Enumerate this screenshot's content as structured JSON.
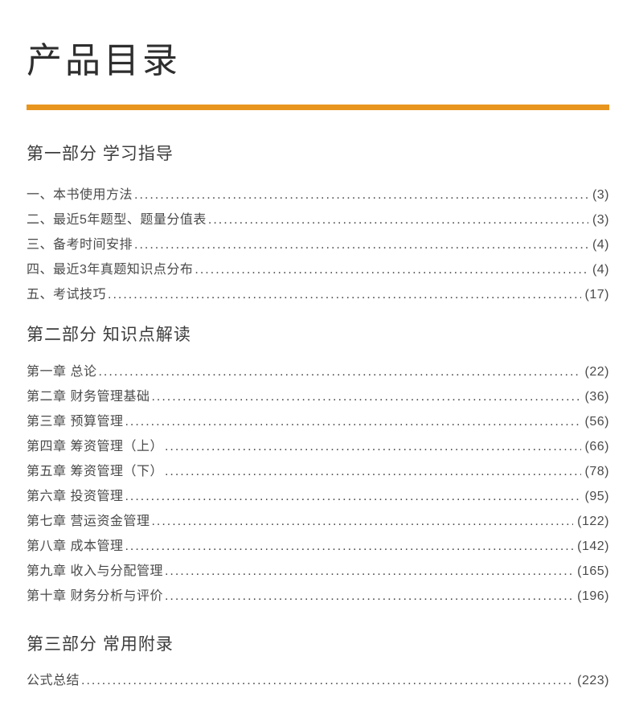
{
  "page": {
    "title": "产品目录",
    "accent_color": "#e8951e"
  },
  "sections": [
    {
      "heading": "第一部分 学习指导",
      "items": [
        {
          "title": "一、本书使用方法",
          "page": "(3)"
        },
        {
          "title": "二、最近5年题型、题量分值表",
          "page": "(3)"
        },
        {
          "title": "三、备考时间安排",
          "page": "(4)"
        },
        {
          "title": "四、最近3年真题知识点分布",
          "page": "(4)"
        },
        {
          "title": "五、考试技巧",
          "page": "(17)"
        }
      ]
    },
    {
      "heading": "第二部分 知识点解读",
      "items": [
        {
          "title": "第一章 总论",
          "page": "(22)"
        },
        {
          "title": "第二章 财务管理基础",
          "page": "(36)"
        },
        {
          "title": "第三章 预算管理",
          "page": "(56)"
        },
        {
          "title": "第四章 筹资管理（上）",
          "page": "(66)"
        },
        {
          "title": "第五章 筹资管理（下）",
          "page": "(78)"
        },
        {
          "title": "第六章 投资管理",
          "page": "(95)"
        },
        {
          "title": "第七章 营运资金管理",
          "page": "(122)"
        },
        {
          "title": "第八章 成本管理",
          "page": "(142)"
        },
        {
          "title": "第九章 收入与分配管理",
          "page": "(165)"
        },
        {
          "title": "第十章 财务分析与评价",
          "page": "(196)"
        }
      ]
    },
    {
      "heading": "第三部分 常用附录",
      "items": [
        {
          "title": "公式总结",
          "page": "(223)"
        }
      ]
    }
  ]
}
